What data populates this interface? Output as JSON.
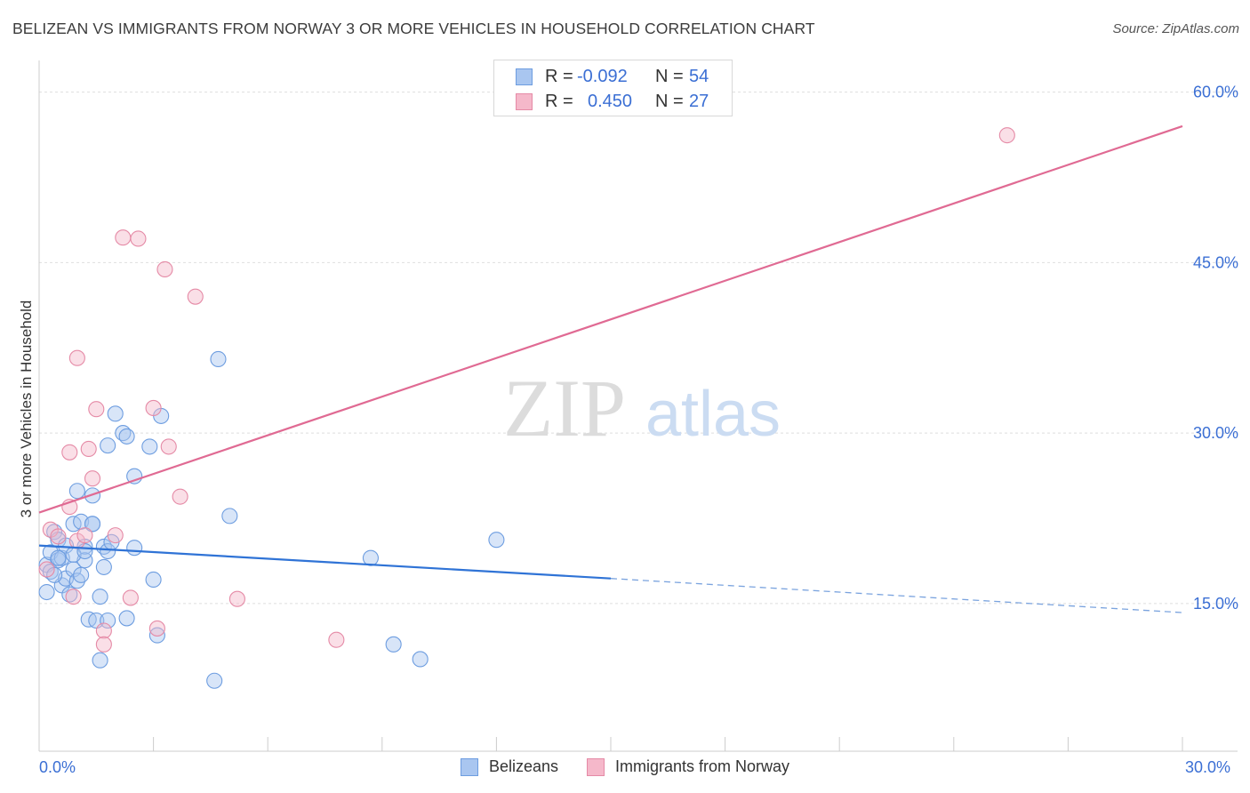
{
  "header": {
    "title": "BELIZEAN VS IMMIGRANTS FROM NORWAY 3 OR MORE VEHICLES IN HOUSEHOLD CORRELATION CHART",
    "source": "Source: ZipAtlas.com"
  },
  "watermark": {
    "zip": "ZIP",
    "atlas": "atlas"
  },
  "legend_top": [
    {
      "r_label": "R =",
      "r_value": "-0.092",
      "n_label": "N =",
      "n_value": "54",
      "color": "#a9c6f0",
      "edge": "#6d9de0"
    },
    {
      "r_label": "R =",
      "r_value": "0.450",
      "n_label": "N =",
      "n_value": "27",
      "color": "#f5b8ca",
      "edge": "#e58aa6"
    }
  ],
  "legend_bottom": [
    {
      "label": "Belizeans",
      "color": "#a9c6f0",
      "edge": "#6d9de0"
    },
    {
      "label": "Immigrants from Norway",
      "color": "#f5b8ca",
      "edge": "#e58aa6"
    }
  ],
  "x_axis": {
    "min_label": "0.0%",
    "max_label": "30.0%"
  },
  "chart_data": {
    "type": "scatter",
    "title": "BELIZEAN VS IMMIGRANTS FROM NORWAY 3 OR MORE VEHICLES IN HOUSEHOLD CORRELATION CHART",
    "xlabel": "",
    "ylabel": "3 or more Vehicles in Household",
    "xlim": [
      0,
      30
    ],
    "ylim": [
      2,
      62
    ],
    "y_ticks": [
      15,
      30,
      45,
      60
    ],
    "y_tick_labels": [
      "15.0%",
      "30.0%",
      "45.0%",
      "60.0%"
    ],
    "grid": true,
    "legend": "top-center",
    "series": [
      {
        "name": "Belizeans",
        "color": "#6d9de0",
        "points": [
          [
            0.2,
            18.4
          ],
          [
            0.3,
            17.8
          ],
          [
            0.3,
            19.5
          ],
          [
            0.4,
            21.3
          ],
          [
            0.5,
            20.6
          ],
          [
            0.5,
            18.8
          ],
          [
            0.6,
            19.0
          ],
          [
            0.6,
            16.6
          ],
          [
            0.7,
            17.2
          ],
          [
            0.7,
            20.1
          ],
          [
            0.8,
            15.8
          ],
          [
            0.9,
            22.0
          ],
          [
            0.9,
            18.0
          ],
          [
            1.0,
            17.0
          ],
          [
            1.0,
            24.9
          ],
          [
            1.1,
            17.5
          ],
          [
            1.1,
            22.2
          ],
          [
            1.2,
            20.0
          ],
          [
            1.2,
            18.8
          ],
          [
            1.3,
            13.6
          ],
          [
            1.4,
            24.5
          ],
          [
            1.4,
            22.0
          ],
          [
            1.5,
            13.5
          ],
          [
            1.6,
            15.6
          ],
          [
            1.6,
            10.0
          ],
          [
            1.7,
            18.2
          ],
          [
            1.7,
            20.0
          ],
          [
            1.8,
            19.6
          ],
          [
            1.8,
            13.5
          ],
          [
            1.9,
            20.4
          ],
          [
            1.8,
            28.9
          ],
          [
            2.0,
            31.7
          ],
          [
            2.2,
            30.0
          ],
          [
            2.3,
            13.7
          ],
          [
            2.3,
            29.7
          ],
          [
            2.5,
            26.2
          ],
          [
            2.5,
            19.9
          ],
          [
            2.9,
            28.8
          ],
          [
            3.0,
            17.1
          ],
          [
            3.1,
            12.2
          ],
          [
            3.2,
            31.5
          ],
          [
            4.6,
            8.2
          ],
          [
            4.7,
            36.5
          ],
          [
            5.0,
            22.7
          ],
          [
            8.7,
            19.0
          ],
          [
            9.3,
            11.4
          ],
          [
            10.0,
            10.1
          ],
          [
            12.0,
            20.6
          ],
          [
            0.2,
            16.0
          ],
          [
            0.4,
            17.5
          ],
          [
            0.5,
            19.0
          ],
          [
            0.9,
            19.3
          ],
          [
            1.2,
            19.6
          ],
          [
            1.4,
            22.0
          ]
        ],
        "trend": {
          "x": [
            0,
            15
          ],
          "y": [
            20.1,
            17.2
          ],
          "dashed_to": [
            30,
            14.2
          ]
        }
      },
      {
        "name": "Immigrants from Norway",
        "color": "#e58aa6",
        "points": [
          [
            0.2,
            18.0
          ],
          [
            0.3,
            21.5
          ],
          [
            0.5,
            20.9
          ],
          [
            0.8,
            23.5
          ],
          [
            0.8,
            28.3
          ],
          [
            0.9,
            15.6
          ],
          [
            1.0,
            20.5
          ],
          [
            1.0,
            36.6
          ],
          [
            1.2,
            21.0
          ],
          [
            1.3,
            28.6
          ],
          [
            1.4,
            26.0
          ],
          [
            1.5,
            32.1
          ],
          [
            1.7,
            12.6
          ],
          [
            1.7,
            11.4
          ],
          [
            2.0,
            21.0
          ],
          [
            2.2,
            47.2
          ],
          [
            2.4,
            15.5
          ],
          [
            2.6,
            47.1
          ],
          [
            3.0,
            32.2
          ],
          [
            3.1,
            12.8
          ],
          [
            3.4,
            28.8
          ],
          [
            3.3,
            44.4
          ],
          [
            3.7,
            24.4
          ],
          [
            4.1,
            42.0
          ],
          [
            5.2,
            15.4
          ],
          [
            7.8,
            11.8
          ],
          [
            25.4,
            56.2
          ]
        ],
        "trend": {
          "x": [
            0,
            30
          ],
          "y": [
            23.0,
            57.0
          ]
        }
      }
    ]
  }
}
